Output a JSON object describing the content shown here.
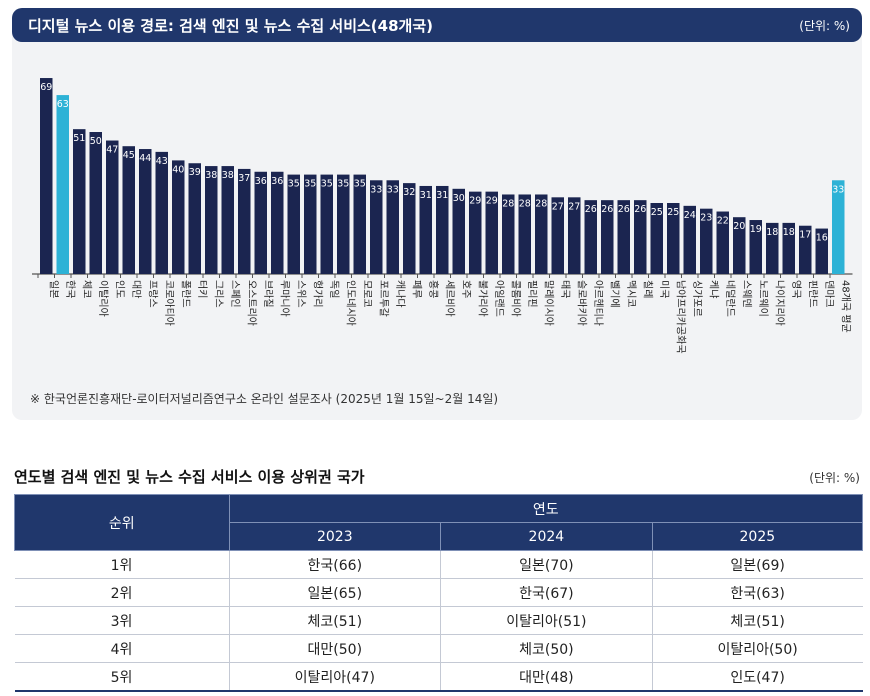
{
  "header": {
    "title": "디지털 뉴스 이용 경로: 검색 엔진 및 뉴스 수집 서비스(48개국)",
    "unit": "(단위: %)"
  },
  "chart_data": {
    "type": "bar",
    "title": "디지털 뉴스 이용 경로: 검색 엔진 및 뉴스 수집 서비스(48개국)",
    "categories": [
      "일본",
      "한국",
      "체코",
      "이탈리아",
      "인도",
      "대만",
      "프랑스",
      "코로아티아",
      "폴란드",
      "터키",
      "그리스",
      "스페인",
      "오스트리아",
      "브라질",
      "루마니아",
      "스위스",
      "헝가리",
      "독일",
      "인도네시아",
      "모로코",
      "포르투갈",
      "캐나다",
      "페루",
      "홍콩",
      "세르비아",
      "호주",
      "불가리아",
      "아일랜드",
      "콜롬비아",
      "필리핀",
      "말레이시아",
      "태국",
      "슬로바키아",
      "아르헨티나",
      "벨기에",
      "멕시코",
      "칠레",
      "미국",
      "남아프리카공화국",
      "싱가포르",
      "케냐",
      "네덜란드",
      "스웨덴",
      "노르웨이",
      "나이지리아",
      "영국",
      "핀란드",
      "덴마크",
      "48개국 평균"
    ],
    "values": [
      69,
      63,
      51,
      50,
      47,
      45,
      44,
      43,
      40,
      39,
      38,
      38,
      37,
      36,
      36,
      35,
      35,
      35,
      35,
      35,
      33,
      33,
      32,
      31,
      31,
      30,
      29,
      29,
      28,
      28,
      28,
      27,
      27,
      26,
      26,
      26,
      26,
      25,
      25,
      24,
      23,
      22,
      20,
      19,
      18,
      18,
      17,
      16,
      33
    ],
    "highlight": [
      "한국",
      "48개국 평균"
    ],
    "colors": {
      "bar": "#1b2550",
      "highlight": "#2db2d6"
    },
    "ylim": [
      0,
      75
    ],
    "grid": false
  },
  "source_note": "※ 한국언론진흥재단-로이터저널리즘연구소 온라인 설문조사 (2025년 1월 15일~2월 14일)",
  "table": {
    "title": "연도별 검색 엔진 및 뉴스 수집 서비스 이용 상위권 국가",
    "unit": "(단위: %)",
    "rank_header": "순위",
    "year_header": "연도",
    "years": [
      "2023",
      "2024",
      "2025"
    ],
    "rows": [
      {
        "rank": "1위",
        "cells": [
          "한국(66)",
          "일본(70)",
          "일본(69)"
        ]
      },
      {
        "rank": "2위",
        "cells": [
          "일본(65)",
          "한국(67)",
          "한국(63)"
        ]
      },
      {
        "rank": "3위",
        "cells": [
          "체코(51)",
          "이탈리아(51)",
          "체코(51)"
        ]
      },
      {
        "rank": "4위",
        "cells": [
          "대만(50)",
          "체코(50)",
          "이탈리아(50)"
        ]
      },
      {
        "rank": "5위",
        "cells": [
          "이탈리아(47)",
          "대만(48)",
          "인도(47)"
        ]
      }
    ]
  }
}
